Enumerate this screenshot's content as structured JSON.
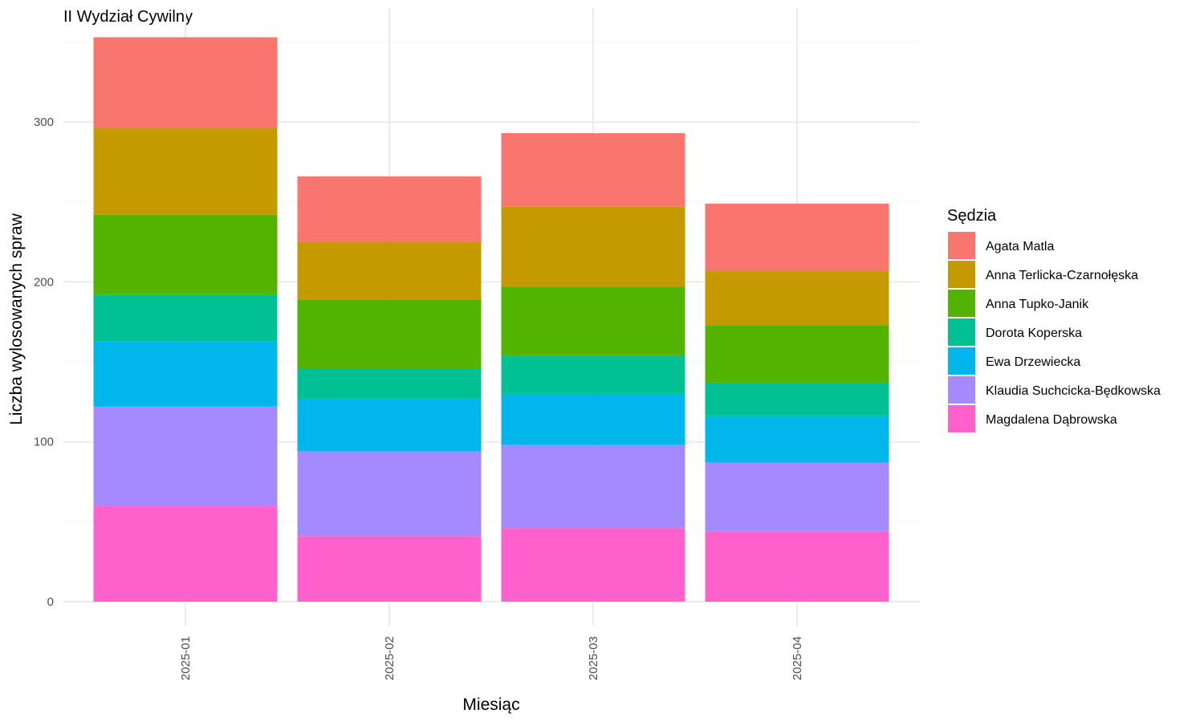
{
  "chart_data": {
    "type": "bar",
    "stacked": true,
    "title": "II Wydział Cywilny",
    "xlabel": "Miesiąc",
    "ylabel": "Liczba wylosowanych spraw",
    "ylim": [
      0,
      355
    ],
    "yticks": [
      0,
      100,
      200,
      300
    ],
    "grid": true,
    "legend": {
      "title": "Sędzia",
      "position": "right"
    },
    "categories": [
      "2025-01",
      "2025-02",
      "2025-03",
      "2025-04"
    ],
    "series": [
      {
        "name": "Magdalena Dąbrowska",
        "color": "#FF61CC",
        "values": [
          60,
          41,
          46,
          44
        ]
      },
      {
        "name": "Klaudia Suchcicka-Będkowska",
        "color": "#A58AFF",
        "values": [
          62,
          53,
          52,
          43
        ]
      },
      {
        "name": "Ewa Drzewiecka",
        "color": "#00B6EB",
        "values": [
          41,
          33,
          32,
          29
        ]
      },
      {
        "name": "Dorota Koperska",
        "color": "#00C094",
        "values": [
          29,
          19,
          24,
          21
        ]
      },
      {
        "name": "Anna Tupko-Janik",
        "color": "#53B400",
        "values": [
          50,
          43,
          43,
          36
        ]
      },
      {
        "name": "Anna Terlicka-Czarnołęska",
        "color": "#C49A00",
        "values": [
          54,
          36,
          50,
          34
        ]
      },
      {
        "name": "Agata Matla",
        "color": "#F8766D",
        "values": [
          57,
          41,
          46,
          42
        ]
      }
    ]
  }
}
